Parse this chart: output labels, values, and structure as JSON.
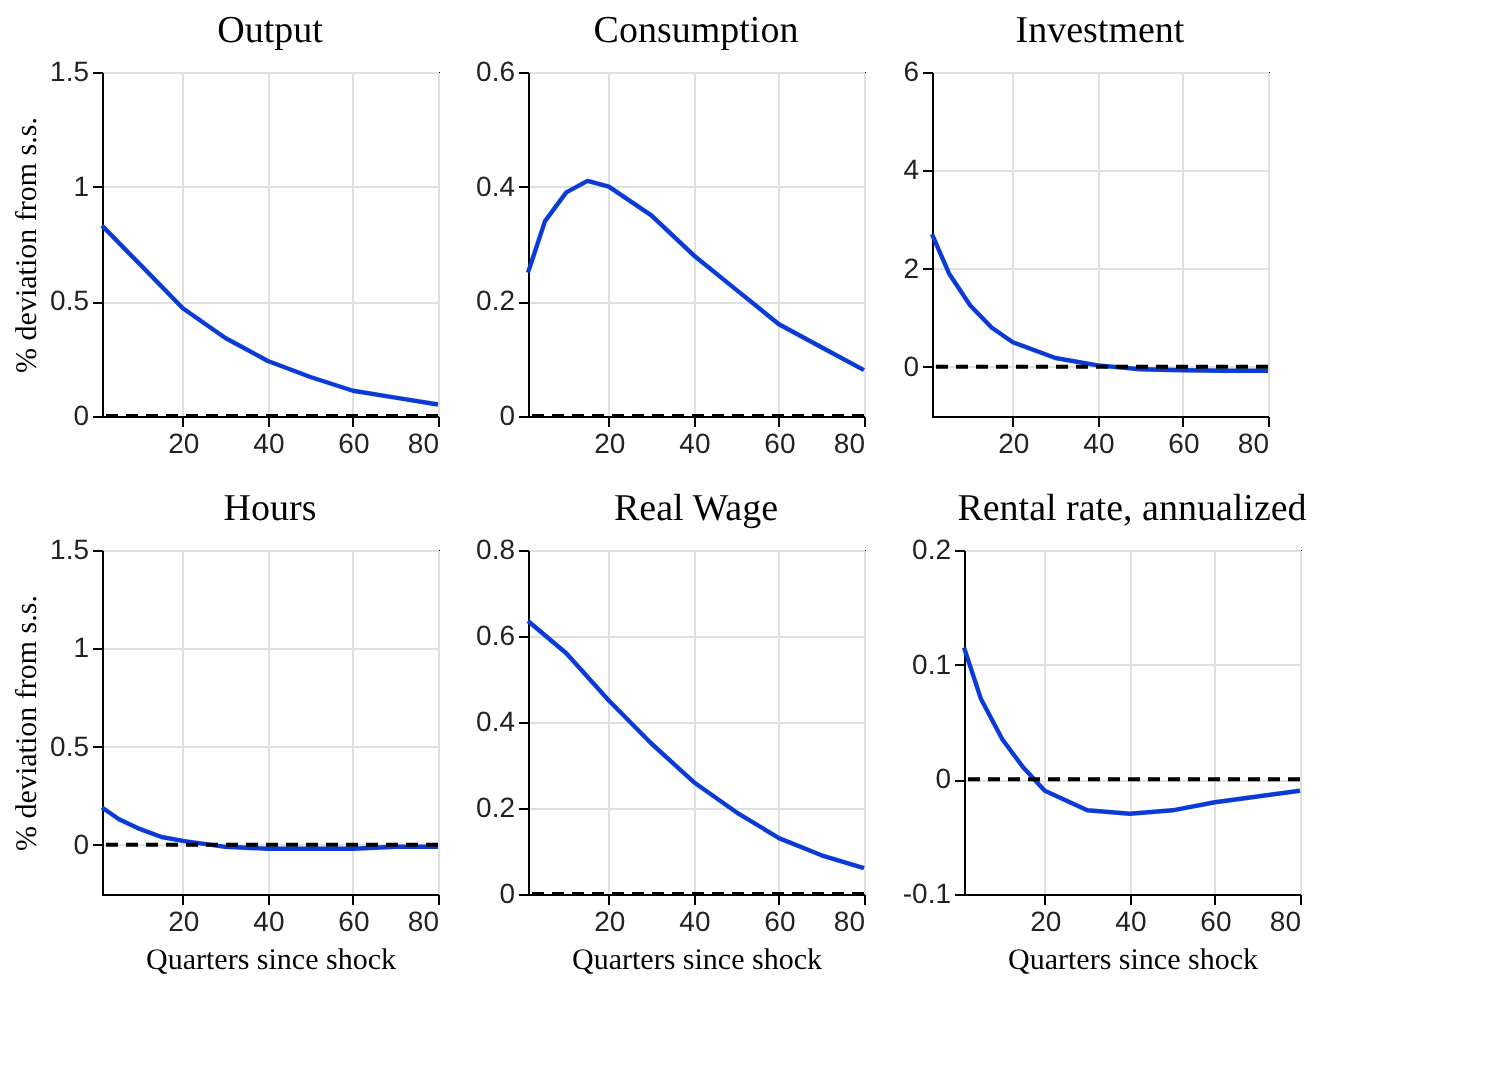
{
  "chart_data": [
    {
      "type": "line",
      "title": "Output",
      "ylabel": "% deviation from s.s.",
      "xlim": [
        1,
        80
      ],
      "xticks": [
        20,
        40,
        60,
        80
      ],
      "ylim": [
        0,
        1.5
      ],
      "yticks": [
        0,
        0.5,
        1,
        1.5
      ],
      "grid": true,
      "x": [
        1,
        10,
        20,
        30,
        40,
        50,
        60,
        70,
        80
      ],
      "series": [
        {
          "color": "#0a3bd6",
          "values": [
            0.83,
            0.66,
            0.47,
            0.34,
            0.24,
            0.17,
            0.11,
            0.08,
            0.05
          ]
        }
      ],
      "ref_lines": [
        {
          "axis": "y",
          "value": 0,
          "color": "#000000",
          "line_style": "dashed"
        }
      ]
    },
    {
      "type": "line",
      "title": "Consumption",
      "xlim": [
        1,
        80
      ],
      "xticks": [
        20,
        40,
        60,
        80
      ],
      "ylim": [
        0,
        0.6
      ],
      "yticks": [
        0,
        0.2,
        0.4,
        0.6
      ],
      "grid": true,
      "x": [
        1,
        5,
        10,
        15,
        20,
        30,
        40,
        50,
        60,
        70,
        80
      ],
      "series": [
        {
          "color": "#0a3bd6",
          "values": [
            0.25,
            0.34,
            0.39,
            0.41,
            0.4,
            0.35,
            0.28,
            0.22,
            0.16,
            0.12,
            0.08
          ]
        }
      ],
      "ref_lines": [
        {
          "axis": "y",
          "value": 0,
          "color": "#000000",
          "line_style": "dashed"
        }
      ]
    },
    {
      "type": "line",
      "title": "Investment",
      "xlim": [
        1,
        80
      ],
      "xticks": [
        20,
        40,
        60,
        80
      ],
      "ylim": [
        -1,
        6
      ],
      "yticks": [
        0,
        2,
        4,
        6
      ],
      "grid": true,
      "x": [
        1,
        5,
        10,
        15,
        20,
        30,
        40,
        50,
        60,
        70,
        80
      ],
      "series": [
        {
          "color": "#0a3bd6",
          "values": [
            2.7,
            1.9,
            1.25,
            0.8,
            0.5,
            0.18,
            0.03,
            -0.05,
            -0.07,
            -0.08,
            -0.08
          ]
        }
      ],
      "ref_lines": [
        {
          "axis": "y",
          "value": 0,
          "color": "#000000",
          "line_style": "dashed"
        }
      ]
    },
    {
      "type": "line",
      "title": "Hours",
      "ylabel": "% deviation from s.s.",
      "xlabel": "Quarters since shock",
      "xlim": [
        1,
        80
      ],
      "xticks": [
        20,
        40,
        60,
        80
      ],
      "ylim": [
        -0.25,
        1.5
      ],
      "yticks": [
        0,
        0.5,
        1,
        1.5
      ],
      "grid": true,
      "x": [
        1,
        5,
        10,
        15,
        20,
        30,
        40,
        50,
        60,
        70,
        80
      ],
      "series": [
        {
          "color": "#0a3bd6",
          "values": [
            0.19,
            0.13,
            0.08,
            0.04,
            0.02,
            -0.01,
            -0.02,
            -0.02,
            -0.02,
            -0.01,
            -0.01
          ]
        }
      ],
      "ref_lines": [
        {
          "axis": "y",
          "value": 0,
          "color": "#000000",
          "line_style": "dashed"
        }
      ]
    },
    {
      "type": "line",
      "title": "Real Wage",
      "xlabel": "Quarters since shock",
      "xlim": [
        1,
        80
      ],
      "xticks": [
        20,
        40,
        60,
        80
      ],
      "ylim": [
        0,
        0.8
      ],
      "yticks": [
        0,
        0.2,
        0.4,
        0.6,
        0.8
      ],
      "grid": true,
      "x": [
        1,
        10,
        20,
        30,
        40,
        50,
        60,
        70,
        80
      ],
      "series": [
        {
          "color": "#0a3bd6",
          "values": [
            0.635,
            0.56,
            0.45,
            0.35,
            0.26,
            0.19,
            0.13,
            0.09,
            0.06
          ]
        }
      ],
      "ref_lines": [
        {
          "axis": "y",
          "value": 0,
          "color": "#000000",
          "line_style": "dashed"
        }
      ]
    },
    {
      "type": "line",
      "title": "Rental rate, annualized",
      "xlabel": "Quarters since shock",
      "xlim": [
        1,
        80
      ],
      "xticks": [
        20,
        40,
        60,
        80
      ],
      "ylim": [
        -0.1,
        0.2
      ],
      "yticks": [
        -0.1,
        0,
        0.1,
        0.2
      ],
      "grid": true,
      "x": [
        1,
        5,
        10,
        15,
        20,
        30,
        40,
        50,
        60,
        70,
        80
      ],
      "series": [
        {
          "color": "#0a3bd6",
          "values": [
            0.115,
            0.07,
            0.035,
            0.01,
            -0.01,
            -0.027,
            -0.03,
            -0.027,
            -0.02,
            -0.015,
            -0.01
          ]
        }
      ],
      "ref_lines": [
        {
          "axis": "y",
          "value": 0,
          "color": "#000000",
          "line_style": "dashed"
        }
      ]
    }
  ]
}
